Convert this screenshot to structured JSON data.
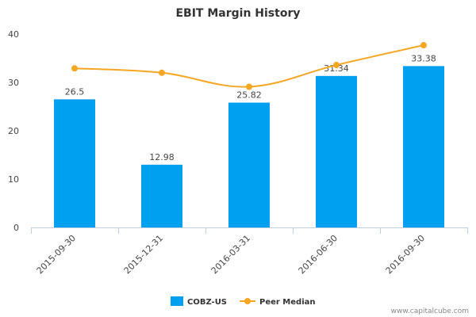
{
  "chart_data": {
    "type": "bar",
    "title": "EBIT Margin History",
    "categories": [
      "2015-09-30",
      "2015-12-31",
      "2016-03-31",
      "2016-06-30",
      "2016-09-30"
    ],
    "series": [
      {
        "name": "COBZ-US",
        "type": "bar",
        "values": [
          26.5,
          12.98,
          25.82,
          31.34,
          33.38
        ],
        "color": "#00a0f0",
        "labels": [
          "26.5",
          "12.98",
          "25.82",
          "31.34",
          "33.38"
        ]
      },
      {
        "name": "Peer Median",
        "type": "line",
        "values": [
          32.9,
          32.0,
          29.1,
          33.6,
          37.7
        ],
        "color": "#f5a623"
      }
    ],
    "ylim": [
      0,
      40
    ],
    "yticks": [
      0,
      10,
      20,
      30,
      40
    ],
    "grid": false,
    "legend_position": "bottom-center"
  },
  "credit": "www.capitalcube.com"
}
